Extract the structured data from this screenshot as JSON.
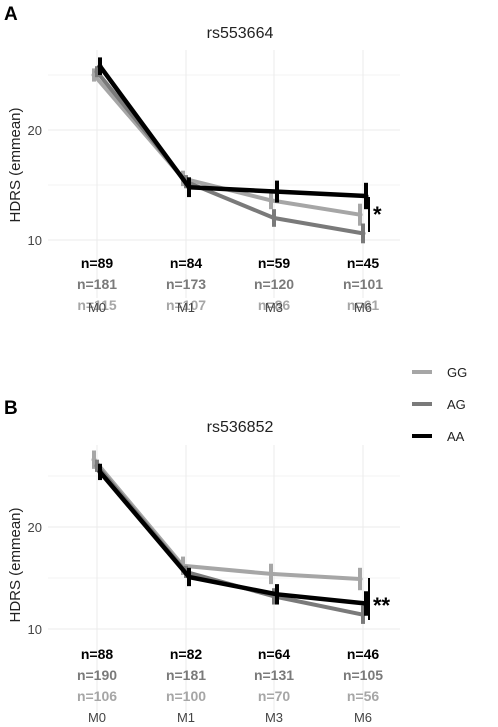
{
  "colors": {
    "GG": "#a6a6a6",
    "AG": "#7a7a7a",
    "AA": "#000000"
  },
  "legend": {
    "labels": [
      "GG",
      "AG",
      "AA"
    ]
  },
  "chart_data": [
    {
      "type": "line",
      "panel_label": "A",
      "title": "rs553664",
      "ylabel": "HDRS (emmean)",
      "categories": [
        "M0",
        "M1",
        "M3",
        "M6"
      ],
      "ylim": [
        8.5,
        28
      ],
      "yticks": [
        10,
        20
      ],
      "grid": true,
      "series": [
        {
          "name": "GG",
          "values": [
            25.0,
            15.6,
            13.6,
            12.3
          ],
          "err": [
            0.6,
            0.7,
            0.8,
            1.0
          ]
        },
        {
          "name": "AG",
          "values": [
            25.3,
            15.3,
            12.0,
            10.6
          ],
          "err": [
            0.5,
            0.6,
            0.8,
            0.9
          ]
        },
        {
          "name": "AA",
          "values": [
            25.8,
            14.8,
            14.4,
            14.0
          ],
          "err": [
            0.8,
            0.9,
            1.0,
            1.2
          ]
        }
      ],
      "counts": {
        "AA": [
          "n=89",
          "n=84",
          "n=59",
          "n=45"
        ],
        "AG": [
          "n=181",
          "n=173",
          "n=120",
          "n=101"
        ],
        "GG": [
          "n=115",
          "n=107",
          "n=86",
          "n=61"
        ]
      },
      "significance": "*"
    },
    {
      "type": "line",
      "panel_label": "B",
      "title": "rs536852",
      "ylabel": "HDRS (emmean)",
      "categories": [
        "M0",
        "M1",
        "M3",
        "M6"
      ],
      "ylim": [
        8.5,
        28
      ],
      "yticks": [
        10,
        20
      ],
      "grid": true,
      "series": [
        {
          "name": "GG",
          "values": [
            26.6,
            16.2,
            15.4,
            14.9
          ],
          "err": [
            0.9,
            0.9,
            1.0,
            1.1
          ]
        },
        {
          "name": "AG",
          "values": [
            26.0,
            15.6,
            13.2,
            11.4
          ],
          "err": [
            0.6,
            0.6,
            0.8,
            0.9
          ]
        },
        {
          "name": "AA",
          "values": [
            25.4,
            15.1,
            13.4,
            12.5
          ],
          "err": [
            0.8,
            0.9,
            1.0,
            1.2
          ]
        }
      ],
      "counts": {
        "AA": [
          "n=88",
          "n=82",
          "n=64",
          "n=46"
        ],
        "AG": [
          "n=190",
          "n=181",
          "n=131",
          "n=105"
        ],
        "GG": [
          "n=106",
          "n=100",
          "n=70",
          "n=56"
        ]
      },
      "significance": "**"
    }
  ]
}
